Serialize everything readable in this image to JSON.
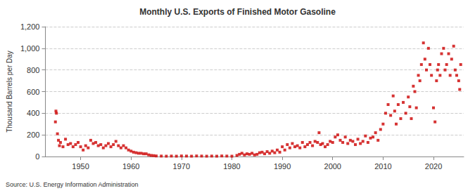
{
  "chart_data": {
    "type": "scatter",
    "title": "Monthly U.S. Exports of Finished Motor Gasoline",
    "y_label": "Thousand Barrels per Day",
    "annotation": "Source: U.S. Energy Information Administration",
    "color": "#cc0000",
    "marker": "square",
    "grid": true,
    "xlim": [
      1943,
      2026
    ],
    "xticks": [
      1950,
      1960,
      1970,
      1980,
      1990,
      2000,
      2010,
      2020
    ],
    "ylim": [
      0,
      1200
    ],
    "yticks": [
      0,
      200,
      400,
      600,
      800,
      {
        "value": 1000,
        "label": "1,000"
      },
      {
        "value": 1200,
        "label": "1,200"
      }
    ],
    "x": [
      1945.0,
      1945.1,
      1945.2,
      1945.4,
      1945.6,
      1945.8,
      1946.0,
      1946.5,
      1947.0,
      1947.5,
      1948.0,
      1948.5,
      1949.0,
      1949.5,
      1950.0,
      1950.5,
      1951.0,
      1951.5,
      1952.0,
      1952.5,
      1953.0,
      1953.5,
      1954.0,
      1954.5,
      1955.0,
      1955.5,
      1956.0,
      1956.5,
      1957.0,
      1957.5,
      1958.0,
      1958.5,
      1959.0,
      1959.5,
      1960.0,
      1960.5,
      1961.0,
      1961.5,
      1962.0,
      1962.5,
      1963.0,
      1963.5,
      1964.0,
      1964.5,
      1965.0,
      1966.0,
      1967.0,
      1968.0,
      1969.0,
      1970.0,
      1971.0,
      1972.0,
      1973.0,
      1974.0,
      1975.0,
      1976.0,
      1977.0,
      1978.0,
      1979.0,
      1980.0,
      1981.0,
      1981.5,
      1982.0,
      1982.5,
      1983.0,
      1983.5,
      1984.0,
      1984.5,
      1985.0,
      1985.5,
      1986.0,
      1986.5,
      1987.0,
      1987.5,
      1988.0,
      1988.5,
      1989.0,
      1989.5,
      1990.0,
      1990.5,
      1991.0,
      1991.5,
      1992.0,
      1992.5,
      1993.0,
      1993.5,
      1994.0,
      1994.5,
      1995.0,
      1995.5,
      1996.0,
      1996.5,
      1997.0,
      1997.3,
      1997.6,
      1998.0,
      1998.5,
      1999.0,
      1999.5,
      2000.0,
      2000.5,
      2001.0,
      2001.5,
      2002.0,
      2002.5,
      2003.0,
      2003.5,
      2004.0,
      2004.5,
      2005.0,
      2005.5,
      2006.0,
      2006.5,
      2007.0,
      2007.5,
      2008.0,
      2008.5,
      2009.0,
      2009.5,
      2010.0,
      2010.5,
      2011.0,
      2011.5,
      2012.0,
      2012.3,
      2012.6,
      2013.0,
      2013.5,
      2014.0,
      2014.5,
      2015.0,
      2015.3,
      2015.6,
      2016.0,
      2016.3,
      2016.6,
      2017.0,
      2017.3,
      2017.6,
      2018.0,
      2018.3,
      2018.6,
      2019.0,
      2019.3,
      2019.6,
      2020.0,
      2020.3,
      2020.6,
      2020.8,
      2021.0,
      2021.3,
      2021.6,
      2022.0,
      2022.3,
      2022.6,
      2023.0,
      2023.3,
      2023.6,
      2024.0,
      2024.3,
      2024.6,
      2025.0,
      2025.2,
      2025.4
    ],
    "values": [
      320,
      420,
      400,
      210,
      150,
      100,
      130,
      90,
      160,
      110,
      120,
      90,
      110,
      130,
      90,
      60,
      100,
      80,
      150,
      120,
      130,
      100,
      110,
      80,
      100,
      120,
      90,
      110,
      140,
      100,
      80,
      100,
      80,
      60,
      50,
      40,
      35,
      30,
      30,
      25,
      25,
      15,
      10,
      8,
      5,
      4,
      3,
      4,
      3,
      5,
      4,
      3,
      5,
      4,
      3,
      4,
      3,
      5,
      4,
      3,
      10,
      20,
      30,
      15,
      25,
      20,
      30,
      15,
      20,
      35,
      40,
      25,
      45,
      30,
      50,
      35,
      60,
      40,
      90,
      60,
      110,
      80,
      120,
      90,
      100,
      80,
      130,
      90,
      110,
      130,
      100,
      140,
      130,
      220,
      110,
      120,
      90,
      110,
      140,
      130,
      180,
      200,
      150,
      130,
      180,
      120,
      150,
      140,
      110,
      160,
      120,
      140,
      190,
      130,
      170,
      180,
      220,
      150,
      250,
      300,
      400,
      480,
      380,
      560,
      420,
      300,
      480,
      350,
      500,
      400,
      550,
      460,
      350,
      650,
      600,
      450,
      750,
      700,
      850,
      1050,
      900,
      800,
      1000,
      850,
      750,
      450,
      320,
      700,
      800,
      850,
      750,
      950,
      1000,
      800,
      850,
      950,
      750,
      900,
      1020,
      800,
      750,
      700,
      620,
      850
    ]
  }
}
